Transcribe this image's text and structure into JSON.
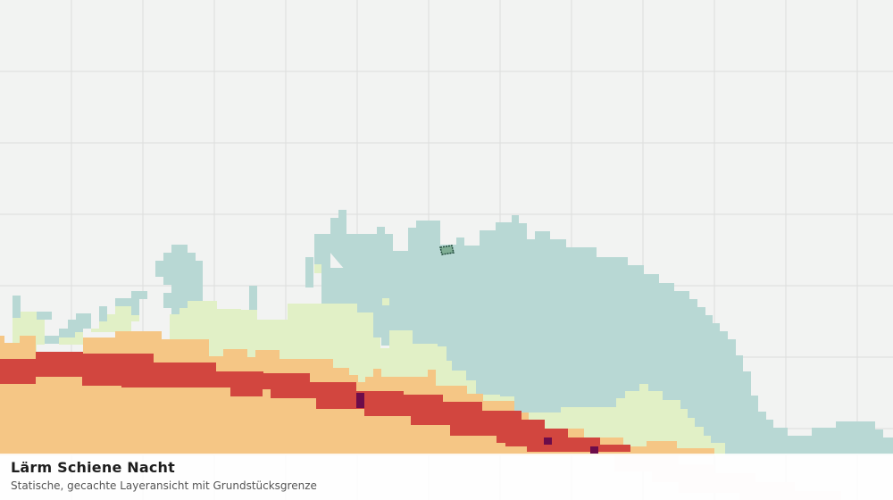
{
  "map": {
    "title": "Lärm Schiene Nacht",
    "subtitle": "Statische, gecachte Layeransicht mit Grundstücksgrenze",
    "colors": {
      "background": "#f2f3f2",
      "grid": "#dfe0df",
      "low_noise_teal": "#b8d8d4",
      "light_green": "#e1f0c6",
      "orange": "#f5c685",
      "red": "#d2463f",
      "dark_purple": "#6c0c4a",
      "parcel_outline": "#1f4a3a"
    }
  }
}
